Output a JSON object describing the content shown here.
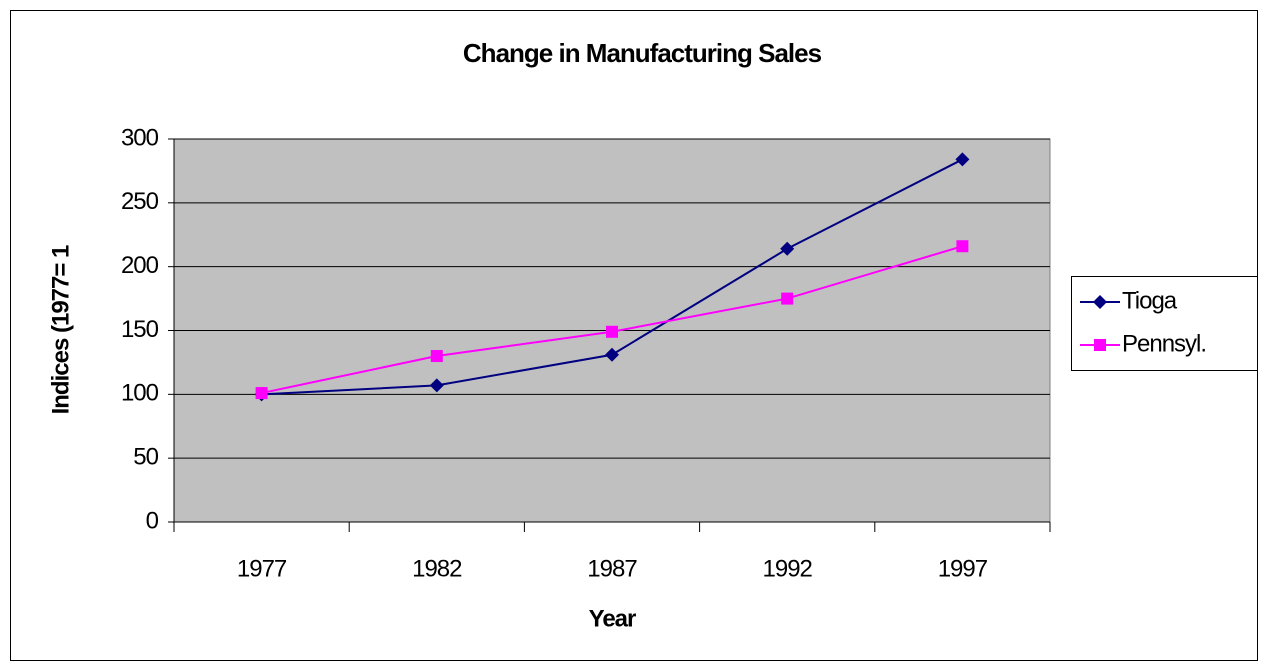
{
  "chart_data": {
    "type": "line",
    "title": "Change in Manufacturing Sales",
    "x_label": "Year",
    "y_label": "Indices (1977= 1",
    "categories": [
      "1977",
      "1982",
      "1987",
      "1992",
      "1997"
    ],
    "series": [
      {
        "name": "Tioga",
        "color": "#000080",
        "marker": "diamond",
        "values": [
          100,
          107,
          131,
          214,
          284
        ]
      },
      {
        "name": "Pennsyl.",
        "color": "#ff00ff",
        "marker": "square",
        "values": [
          101,
          130,
          149,
          175,
          216
        ]
      }
    ],
    "ylim": [
      0,
      300
    ],
    "yticks": [
      0,
      50,
      100,
      150,
      200,
      250,
      300
    ],
    "grid": true,
    "legend": "right"
  }
}
